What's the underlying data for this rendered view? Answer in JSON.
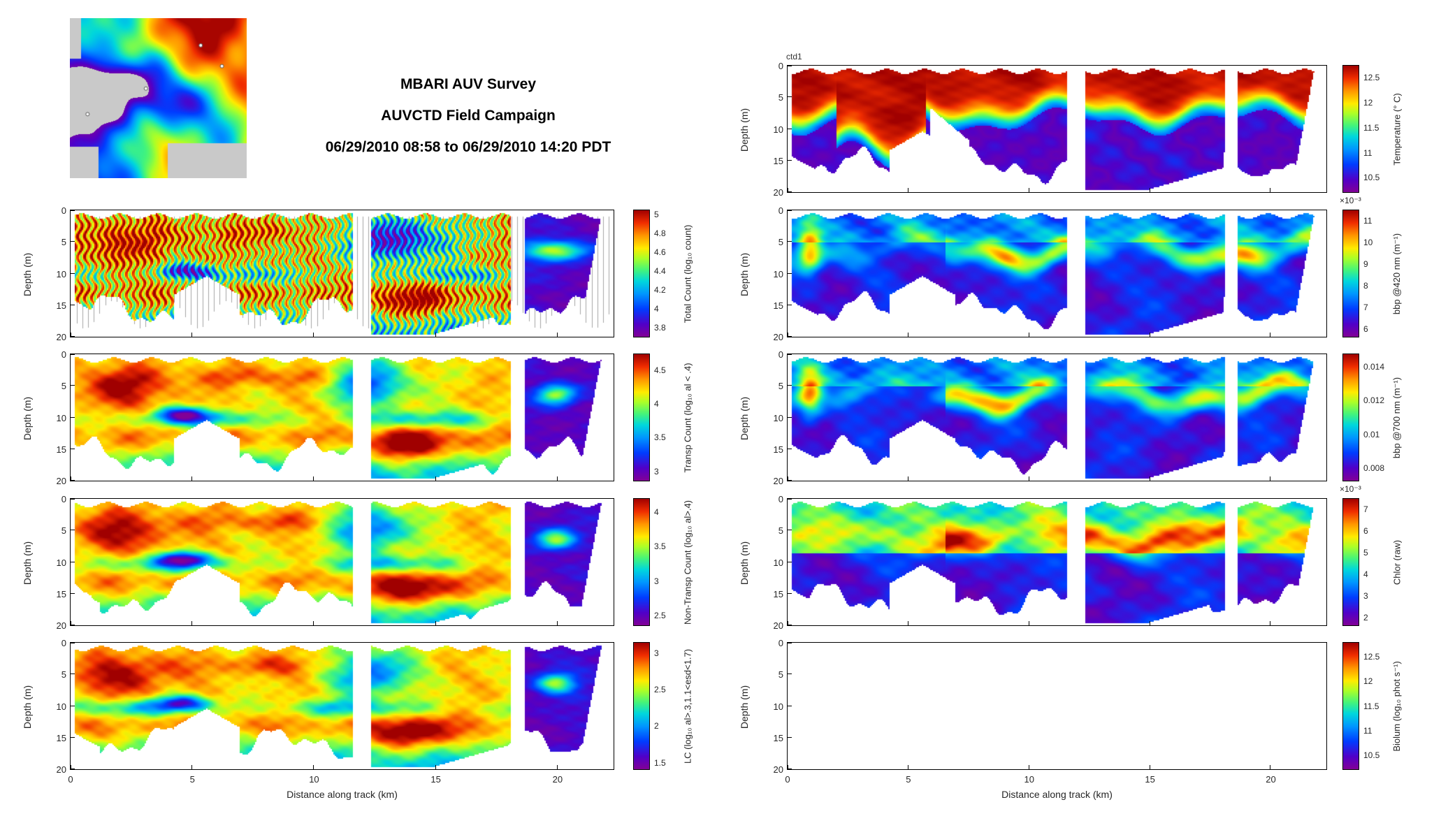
{
  "title": {
    "line1": "MBARI AUV Survey",
    "line2": "AUVCTD Field Campaign",
    "line3": "06/29/2010 08:58 to 06/29/2010 14:20 PDT"
  },
  "map_inset": {
    "description": "Bathymetry / topography map of Monterey Bay region with survey area markers"
  },
  "axes": {
    "x_label": "Distance along track (km)",
    "y_label": "Depth (m)",
    "x_ticks": [
      0,
      5,
      10,
      15,
      20
    ],
    "y_ticks": [
      0,
      5,
      10,
      15,
      20
    ],
    "x_range": [
      0,
      22.3
    ],
    "y_range": [
      0,
      20
    ]
  },
  "chart_data": {
    "type": "heatmap",
    "title": "MBARI AUV Survey AUVCTD Field Campaign 06/29/2010 08:58 to 06/29/2010 14:20 PDT",
    "xlabel": "Distance along track (km)",
    "ylabel": "Depth (m)",
    "x_range_km": [
      0,
      22.3
    ],
    "depth_range_m": [
      0,
      20
    ],
    "colormap": "jet-with-magenta-low-end",
    "data_gaps_km": [
      [
        11.5,
        12.3
      ],
      [
        18.05,
        18.6
      ]
    ],
    "panels": [
      {
        "id": "total-count",
        "column": "left",
        "row": 1,
        "pattern": "striped",
        "seed": 3,
        "colorbar_label": "Total Count (log₁₀ count)",
        "colorbar_ticks": [
          "5",
          "4.8",
          "4.6",
          "4.4",
          "4.2",
          "4",
          "3.8"
        ],
        "colorbar_tick_values": [
          5,
          4.8,
          4.6,
          4.4,
          4.2,
          4,
          3.8
        ],
        "colorbar_range": [
          3.7,
          5.05
        ],
        "summary": "High counts (log10 ~4.8-5) in upper 8 m at 0-3 km; striped vertical profile structure with gray profile drop lines; low counts (~3.8-4) in blue region 11-15 km upper layer and purple wedge beyond 18.6 km"
      },
      {
        "id": "transp-count",
        "column": "left",
        "row": 2,
        "pattern": "counts",
        "seed": 4,
        "colorbar_label": "Transp Count (log₁₀ al < .4)",
        "colorbar_ticks": [
          "4.5",
          "4",
          "3.5",
          "3"
        ],
        "colorbar_tick_values": [
          4.5,
          4,
          3.5,
          3
        ],
        "colorbar_range": [
          2.85,
          4.75
        ],
        "summary": "Dark red maximum (~4.5) blob 0.5-4 km at 2-8 m depth; orange upper layer; cyan dip band near 10 m; deep orange band 11-16 m; blue patch 10.5-14 km upper layer; purple low (~3) wedge beyond 18.6 km"
      },
      {
        "id": "non-transp-count",
        "column": "left",
        "row": 3,
        "pattern": "counts",
        "seed": 5,
        "colorbar_label": "Non-Transp Count (log₁₀ al>.4)",
        "colorbar_ticks": [
          "4",
          "3.5",
          "3",
          "2.5"
        ],
        "colorbar_tick_values": [
          4,
          3.5,
          3,
          2.5
        ],
        "colorbar_range": [
          2.35,
          4.2
        ],
        "summary": "Same spatial structure as Transp Count: maximum (~4) upper-left blob, purple minimum (~2.5) wedge at right end and purple pocket near 4.5 km / 9.5 m"
      },
      {
        "id": "lc",
        "column": "left",
        "row": 4,
        "pattern": "counts",
        "seed": 6,
        "colorbar_label": "LC (log₁₀ al>.3,1.1<esd<1.7)",
        "colorbar_ticks": [
          "3",
          "2.5",
          "2",
          "1.5"
        ],
        "colorbar_tick_values": [
          3,
          2.5,
          2,
          1.5
        ],
        "colorbar_range": [
          1.4,
          3.15
        ],
        "summary": "Large-copepod proxy count with same pattern: maximum (~3) upper-left, orange mid-depth band, low (~1.5-2) purple wedge beyond 18.6 km"
      },
      {
        "id": "temperature",
        "column": "right",
        "row": 0,
        "pattern": "stratified",
        "seed": 1,
        "panel_title": "ctd1",
        "colorbar_label": "Temperature (° C)",
        "colorbar_ticks": [
          "12.5",
          "12",
          "11.5",
          "11",
          "10.5"
        ],
        "colorbar_tick_values": [
          12.5,
          12,
          11.5,
          11,
          10.5
        ],
        "colorbar_range": [
          10.2,
          12.75
        ],
        "summary": "Warm (~12.5 °C) surface layer above ~6-8 m thermocline; warm tongue reaching ~15 m at 2-5.5 km; cold (~10.5 °C) purple water below 10 m"
      },
      {
        "id": "bbp420",
        "column": "right",
        "row": 1,
        "pattern": "optics",
        "seed": 7,
        "colorbar_prefix": "×10⁻³",
        "colorbar_label": "bbp @420 nm (m⁻¹)",
        "colorbar_ticks": [
          "11",
          "10",
          "9",
          "8",
          "7",
          "6"
        ],
        "colorbar_tick_values": [
          11,
          10,
          9,
          8,
          7,
          6
        ],
        "colorbar_range": [
          5.6,
          11.5
        ],
        "summary": "Particulate backscatter at 420 nm: subsurface maximum band (~10-11e-3) at 4-8 m depth, strongest 8-22 km; low (~6e-3) purple water below 10 m"
      },
      {
        "id": "bbp700",
        "column": "right",
        "row": 2,
        "pattern": "optics",
        "seed": 8,
        "colorbar_label": "bbp @700 nm (m⁻¹)",
        "colorbar_ticks": [
          "0.014",
          "0.012",
          "0.01",
          "0.008"
        ],
        "colorbar_tick_values": [
          0.014,
          0.012,
          0.01,
          0.008
        ],
        "colorbar_range": [
          0.0072,
          0.0148
        ],
        "summary": "Particulate backscatter at 700 nm with same spatial structure as 420 nm channel: red subsurface maxima (~0.014) in 4-8 m band on right half, purple minima (~0.008) at depth"
      },
      {
        "id": "chlor",
        "column": "right",
        "row": 3,
        "pattern": "chlor",
        "seed": 9,
        "colorbar_prefix": "×10⁻³",
        "colorbar_label": "Chlor (raw)",
        "colorbar_ticks": [
          "7",
          "6",
          "5",
          "4",
          "3",
          "2"
        ],
        "colorbar_tick_values": [
          7,
          6,
          5,
          4,
          3,
          2
        ],
        "colorbar_range": [
          1.6,
          7.5
        ],
        "summary": "Chlorophyll fluorescence: green-yellow upper mixed layer with red subsurface chlorophyll maximum (~7e-3) band at 4-8 m from ~8 km onward; purple low values (~2e-3) below 10 m"
      },
      {
        "id": "biolum",
        "column": "right",
        "row": 4,
        "pattern": "empty",
        "seed": 0,
        "colorbar_label": "Biolum (log₁₀ phot s⁻¹)",
        "colorbar_ticks": [
          "12.5",
          "12",
          "11.5",
          "11",
          "10.5"
        ],
        "colorbar_tick_values": [
          12.5,
          12,
          11.5,
          11,
          10.5
        ],
        "colorbar_range": [
          10.2,
          12.8
        ],
        "summary": "Bioluminescence panel: axes and colorbar shown but no section data plotted (blank)"
      }
    ]
  }
}
